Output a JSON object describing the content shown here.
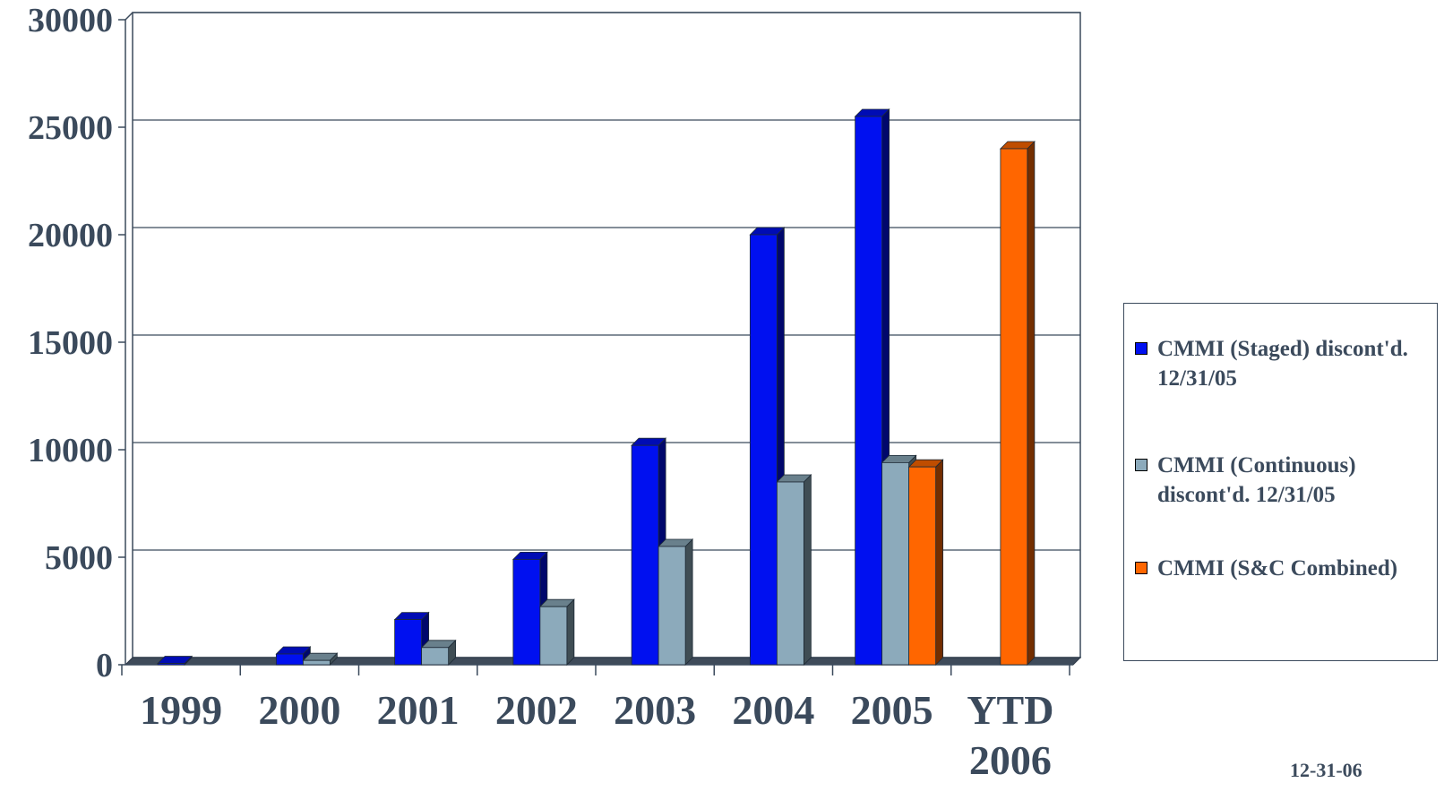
{
  "chart_data": {
    "type": "bar",
    "categories": [
      "1999",
      "2000",
      "2001",
      "2002",
      "2003",
      "2004",
      "2005",
      "YTD 2006"
    ],
    "category_lines": [
      [
        "1999"
      ],
      [
        "2000"
      ],
      [
        "2001"
      ],
      [
        "2002"
      ],
      [
        "2003"
      ],
      [
        "2004"
      ],
      [
        "2005"
      ],
      [
        "YTD",
        "2006"
      ]
    ],
    "series": [
      {
        "name": "CMMI (Staged) discont'd. 12/31/05",
        "color": "#0010f0",
        "values": [
          60,
          500,
          2100,
          4900,
          10200,
          20000,
          25500,
          null
        ]
      },
      {
        "name": "CMMI (Continuous) discont'd. 12/31/05",
        "color": "#8caabb",
        "values": [
          0,
          200,
          800,
          2700,
          5500,
          8500,
          9400,
          null
        ]
      },
      {
        "name": "CMMI (S&C Combined)",
        "color": "#ff6600",
        "values": [
          null,
          null,
          null,
          null,
          null,
          null,
          9200,
          24000
        ]
      }
    ],
    "yticks": [
      "0",
      "5000",
      "10000",
      "15000",
      "20000",
      "25000",
      "30000"
    ],
    "ylim": [
      0,
      30000
    ],
    "grid": true,
    "legend_position": "right",
    "title": "",
    "xlabel": "",
    "ylabel": ""
  },
  "legend": {
    "items": [
      {
        "lines": [
          "CMMI (Staged) discont'd.",
          "12/31/05"
        ]
      },
      {
        "lines": [
          "CMMI (Continuous)",
          "discont'd. 12/31/05"
        ]
      },
      {
        "lines": [
          "CMMI (S&C Combined)"
        ]
      }
    ]
  },
  "footnote": "12-31-06"
}
